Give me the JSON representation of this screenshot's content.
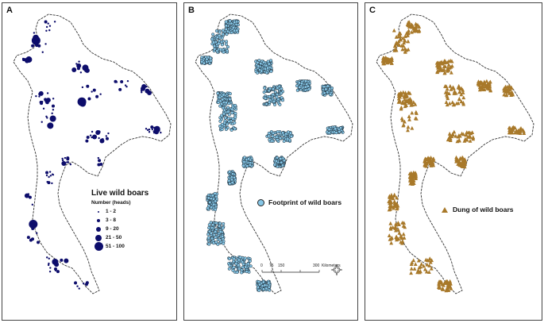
{
  "panels": {
    "a": {
      "label": "A",
      "legend_title": "Live wild boars",
      "legend_subtitle": "Number (heads)",
      "classes": [
        "1 - 2",
        "3 - 8",
        "9 - 20",
        "21 - 50",
        "51 - 100"
      ],
      "symbol_color": "#0d0d6b"
    },
    "b": {
      "label": "B",
      "legend_label": "Footprint of wild boars",
      "symbol_color": "#86c6e6"
    },
    "c": {
      "label": "C",
      "legend_label": "Dung of wild boars",
      "symbol_color": "#a8792a"
    }
  },
  "scalebar": {
    "ticks": [
      "0",
      "75",
      "150",
      "300"
    ],
    "unit": "Kilometers"
  }
}
